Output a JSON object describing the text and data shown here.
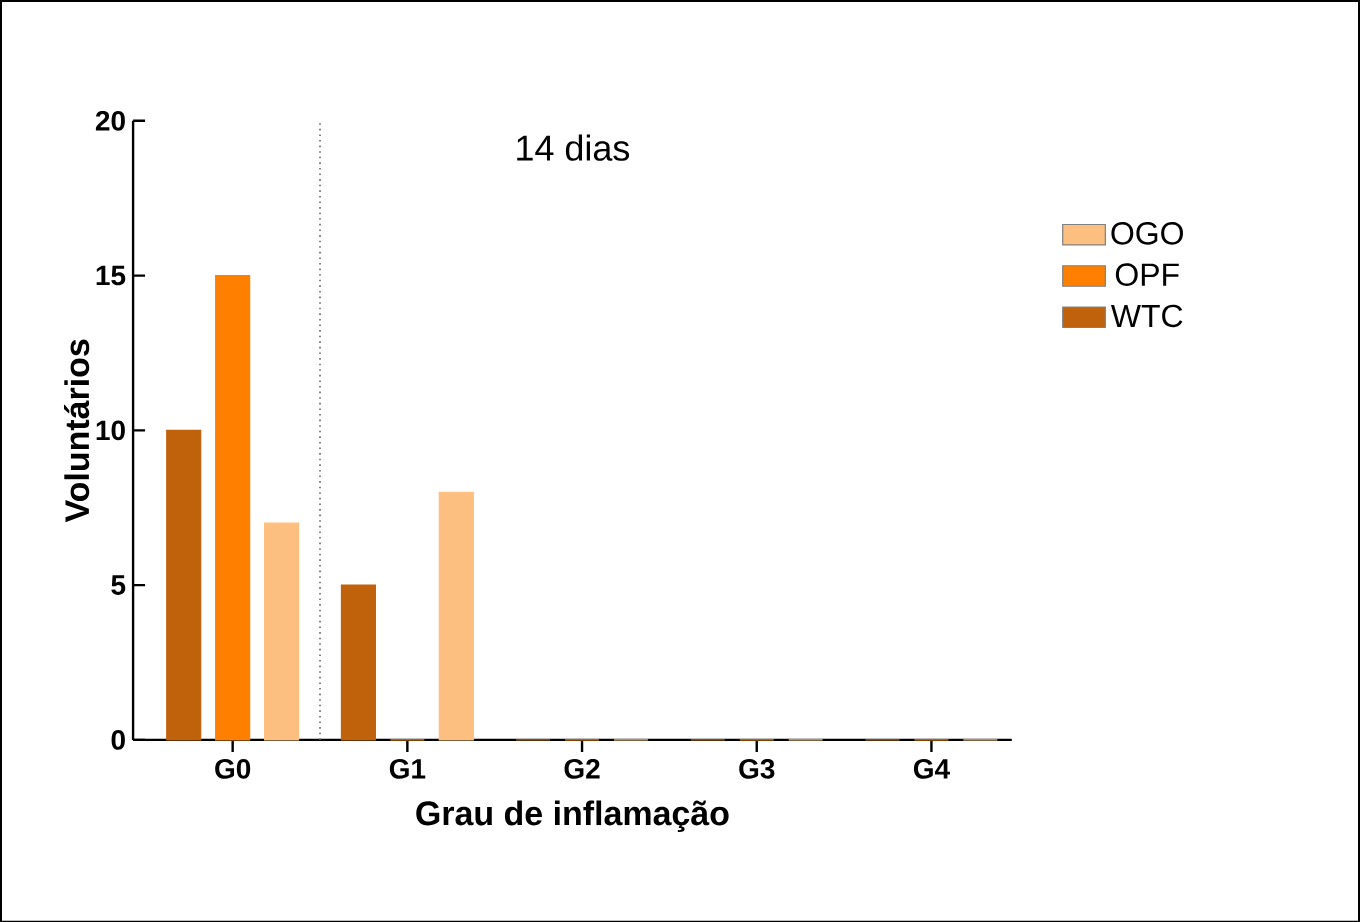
{
  "chart_data": {
    "type": "bar",
    "title": "14 dias",
    "xlabel": "Grau de inflamação",
    "ylabel": "Voluntários",
    "categories": [
      "G0",
      "G1",
      "G2",
      "G3",
      "G4"
    ],
    "series": [
      {
        "name": "WTC",
        "color": "#c0620c",
        "values": [
          10,
          5,
          0,
          0,
          0
        ]
      },
      {
        "name": "OPF",
        "color": "#ff8000",
        "values": [
          15,
          0,
          0,
          0,
          0
        ]
      },
      {
        "name": "OGO",
        "color": "#fdbf7f",
        "values": [
          7,
          8,
          0,
          0,
          0
        ]
      }
    ],
    "ylim": [
      0,
      20
    ],
    "yticks": [
      0,
      5,
      10,
      15,
      20
    ],
    "grid": false,
    "legend": "right"
  }
}
